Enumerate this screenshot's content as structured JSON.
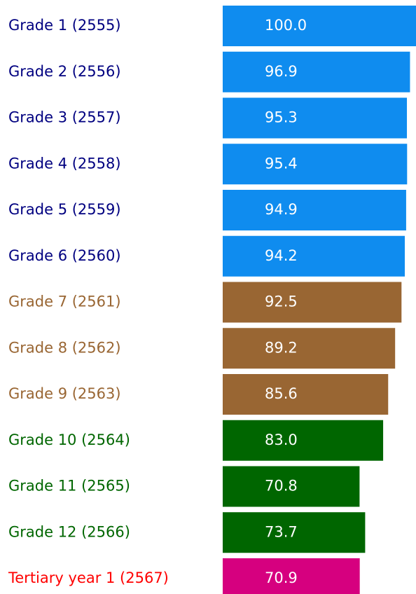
{
  "chart_data": {
    "type": "bar",
    "orientation": "horizontal",
    "categories": [
      "Grade 1 (2555)",
      "Grade 2 (2556)",
      "Grade 3 (2557)",
      "Grade 4 (2558)",
      "Grade 5 (2559)",
      "Grade 6 (2560)",
      "Grade 7 (2561)",
      "Grade 8 (2562)",
      "Grade 9 (2563)",
      "Grade 10 (2564)",
      "Grade 11 (2565)",
      "Grade 12 (2566)",
      "Tertiary year 1 (2567)"
    ],
    "values": [
      100.0,
      96.9,
      95.3,
      95.4,
      94.9,
      94.2,
      92.5,
      89.2,
      85.6,
      83.0,
      70.8,
      73.7,
      70.9
    ],
    "value_labels": [
      "100.0",
      "96.9",
      "95.3",
      "95.4",
      "94.9",
      "94.2",
      "92.5",
      "89.2",
      "85.6",
      "83.0",
      "70.8",
      "73.7",
      "70.9"
    ],
    "colors": [
      "#0f8cef",
      "#0f8cef",
      "#0f8cef",
      "#0f8cef",
      "#0f8cef",
      "#0f8cef",
      "#996633",
      "#996633",
      "#996633",
      "#006600",
      "#006600",
      "#006600",
      "#d6007f"
    ],
    "label_colors": [
      "#000080",
      "#000080",
      "#000080",
      "#000080",
      "#000080",
      "#000080",
      "#996633",
      "#996633",
      "#996633",
      "#006600",
      "#006600",
      "#006600",
      "#ff0000"
    ],
    "xlim": [
      0,
      100
    ]
  }
}
